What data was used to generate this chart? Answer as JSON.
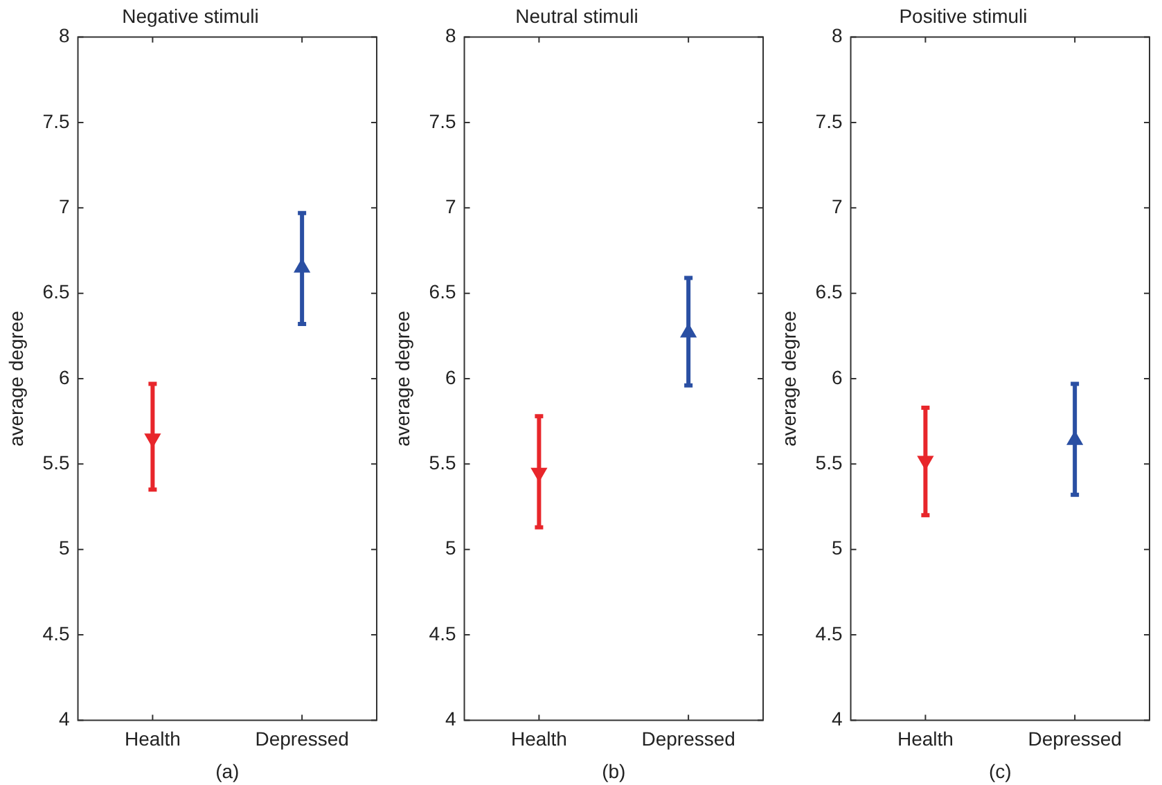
{
  "chart_data": [
    {
      "type": "scatter",
      "title": "Negative stimuli",
      "ylabel": "average degree",
      "annotations": [
        "(a)"
      ],
      "categories": [
        "Health",
        "Depressed"
      ],
      "ylim": [
        4,
        8
      ],
      "yticks": [
        4,
        4.5,
        5,
        5.5,
        6,
        6.5,
        7,
        7.5,
        8
      ],
      "grid": false,
      "legend": false,
      "series": [
        {
          "color": "#e8262b",
          "marker": "triangle-down",
          "values": [
            5.65,
            null
          ],
          "errors": [
            [
              5.35,
              5.97
            ],
            null
          ]
        },
        {
          "color": "#2a4fa3",
          "marker": "triangle",
          "values": [
            null,
            6.65
          ],
          "errors": [
            null,
            [
              6.32,
              6.97
            ]
          ]
        }
      ]
    },
    {
      "type": "scatter",
      "title": "Neutral stimuli",
      "ylabel": "average degree",
      "annotations": [
        "(b)"
      ],
      "categories": [
        "Health",
        "Depressed"
      ],
      "ylim": [
        4,
        8
      ],
      "yticks": [
        4,
        4.5,
        5,
        5.5,
        6,
        6.5,
        7,
        7.5,
        8
      ],
      "grid": false,
      "legend": false,
      "series": [
        {
          "color": "#e8262b",
          "marker": "triangle-down",
          "values": [
            5.45,
            null
          ],
          "errors": [
            [
              5.13,
              5.78
            ],
            null
          ]
        },
        {
          "color": "#2a4fa3",
          "marker": "triangle",
          "values": [
            null,
            6.27
          ],
          "errors": [
            null,
            [
              5.96,
              6.59
            ]
          ]
        }
      ]
    },
    {
      "type": "scatter",
      "title": "Positive stimuli",
      "ylabel": "average degree",
      "annotations": [
        "(c)"
      ],
      "categories": [
        "Health",
        "Depressed"
      ],
      "ylim": [
        4,
        8
      ],
      "yticks": [
        4,
        4.5,
        5,
        5.5,
        6,
        6.5,
        7,
        7.5,
        8
      ],
      "grid": false,
      "legend": false,
      "series": [
        {
          "color": "#e8262b",
          "marker": "triangle-down",
          "values": [
            5.52,
            null
          ],
          "errors": [
            [
              5.2,
              5.83
            ],
            null
          ]
        },
        {
          "color": "#2a4fa3",
          "marker": "triangle",
          "values": [
            null,
            5.64
          ],
          "errors": [
            null,
            [
              5.32,
              5.97
            ]
          ]
        }
      ]
    }
  ]
}
